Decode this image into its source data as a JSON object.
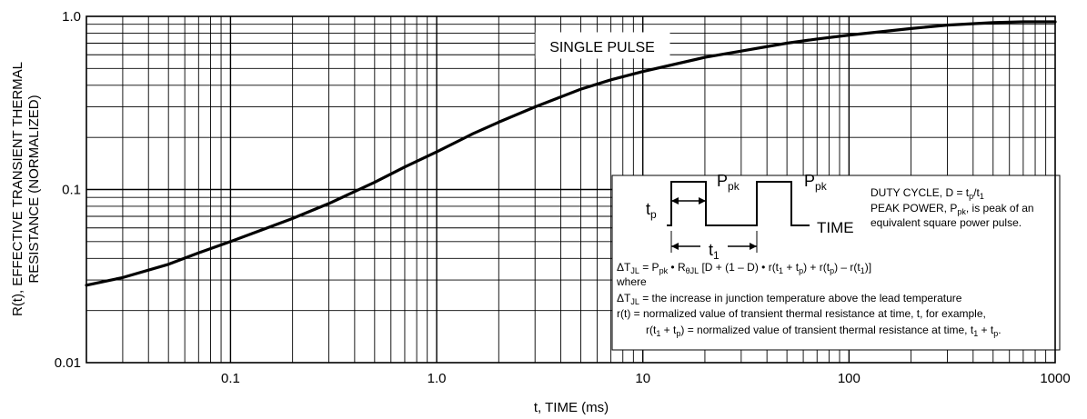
{
  "chart_data": {
    "type": "line",
    "title": "",
    "xlabel": "t, TIME (ms)",
    "ylabel_line1": "R(t), EFFECTIVE TRANSIENT THERMAL",
    "ylabel_line2": "RESISTANCE (NORMALIZED)",
    "x_scale": "log",
    "y_scale": "log",
    "xlim": [
      0.02,
      1000
    ],
    "ylim": [
      0.01,
      1.0
    ],
    "grid": true,
    "x_ticks": [
      {
        "value": 0.1,
        "label": "0.1"
      },
      {
        "value": 1.0,
        "label": "1.0"
      },
      {
        "value": 10,
        "label": "10"
      },
      {
        "value": 100,
        "label": "100"
      },
      {
        "value": 1000,
        "label": "1000"
      }
    ],
    "y_ticks": [
      {
        "value": 0.01,
        "label": "0.01"
      },
      {
        "value": 0.1,
        "label": "0.1"
      },
      {
        "value": 1.0,
        "label": "1.0"
      }
    ],
    "series": [
      {
        "name": "SINGLE PULSE",
        "x": [
          0.02,
          0.03,
          0.05,
          0.07,
          0.1,
          0.2,
          0.3,
          0.5,
          0.7,
          1.0,
          1.5,
          2,
          3,
          5,
          7,
          10,
          20,
          30,
          50,
          70,
          100,
          200,
          300,
          500,
          700,
          1000
        ],
        "y": [
          0.028,
          0.031,
          0.037,
          0.043,
          0.05,
          0.068,
          0.083,
          0.11,
          0.135,
          0.165,
          0.21,
          0.245,
          0.3,
          0.38,
          0.43,
          0.48,
          0.58,
          0.63,
          0.7,
          0.74,
          0.78,
          0.85,
          0.89,
          0.92,
          0.93,
          0.93
        ]
      }
    ],
    "annotations": {
      "pulse_label": "SINGLE PULSE",
      "wave_tp": "t",
      "wave_tp_sub": "p",
      "wave_t1": "t",
      "wave_t1_sub": "1",
      "wave_ppk": "P",
      "wave_ppk_sub": "pk",
      "wave_time": "TIME",
      "duty_pre": "DUTY CYCLE, D = t",
      "duty_sub1": "p",
      "duty_mid": "/t",
      "duty_sub2": "1",
      "peak_pre": "PEAK POWER, P",
      "peak_sub": "pk",
      "peak_post": ", is peak of an",
      "peak_line2": "equivalent square power pulse.",
      "formula_a": "ΔT",
      "formula_a_sub": "JL",
      "formula_b": " = P",
      "formula_b_sub": "pk",
      "formula_c": " • R",
      "formula_c_sub": "θJL",
      "formula_d": " [D + (1 – D) • r(t",
      "formula_d_sub": "1",
      "formula_e": " + t",
      "formula_e_sub": "p",
      "formula_f": ") + r(t",
      "formula_f_sub": "p",
      "formula_g": ") – r(t",
      "formula_g_sub": "1",
      "formula_h": ")]",
      "where": "where",
      "def1_a": "ΔT",
      "def1_sub": "JL",
      "def1_b": " = the increase in junction temperature above the lead temperature",
      "def2": "r(t) = normalized value of transient thermal resistance at time, t, for example,",
      "def3_a": "r(t",
      "def3_sub1": "1",
      "def3_b": " + t",
      "def3_sub2": "p",
      "def3_c": ") = normalized value of transient thermal resistance at time, t",
      "def3_sub3": "1",
      "def3_d": " + t",
      "def3_sub4": "p",
      "def3_e": "."
    }
  }
}
